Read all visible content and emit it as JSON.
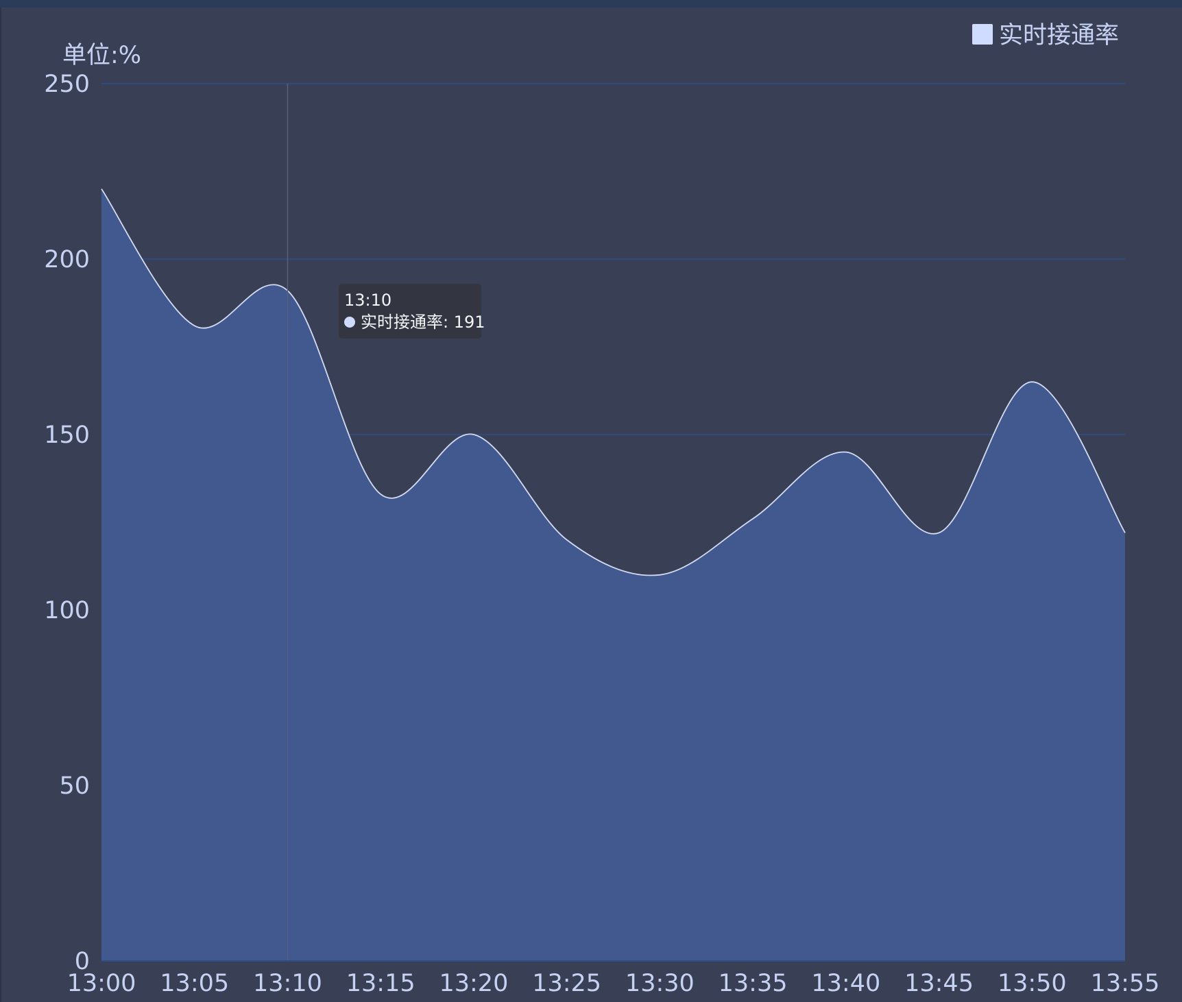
{
  "colors": {
    "background": "#393f54",
    "grid": "#2f4d8a",
    "area_fill": "#41598f",
    "line": "#d4dcf5",
    "text": "#c7d2f2",
    "legend_swatch": "#cfdcff",
    "tooltip_bg": "#333641",
    "crosshair": "#5a6079"
  },
  "chart_data": {
    "type": "area",
    "unit_label": "单位:%",
    "categories": [
      "13:00",
      "13:05",
      "13:10",
      "13:15",
      "13:20",
      "13:25",
      "13:30",
      "13:35",
      "13:40",
      "13:45",
      "13:50",
      "13:55"
    ],
    "series": [
      {
        "name": "实时接通率",
        "values": [
          220,
          181,
          191,
          133,
          150,
          120,
          110,
          126,
          145,
          122,
          165,
          122
        ]
      }
    ],
    "ylim": [
      0,
      250
    ],
    "yticks": [
      0,
      50,
      100,
      150,
      200,
      250
    ],
    "grid": "horizontal",
    "smooth": true,
    "legend_position": "top-right",
    "tooltip": {
      "category": "13:10",
      "series_name": "实时接通率",
      "value": 191,
      "text": "实时接通率: 191"
    }
  }
}
